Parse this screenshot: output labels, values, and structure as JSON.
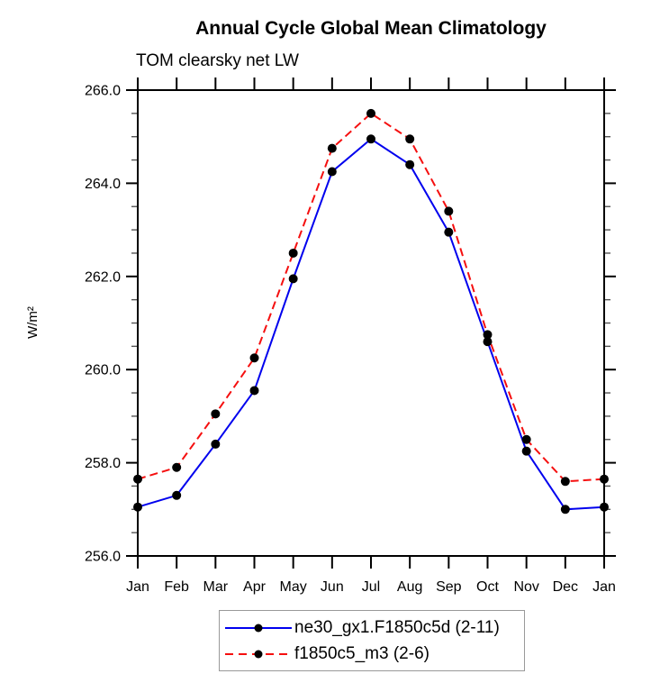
{
  "chart_data": {
    "type": "line",
    "title": "Annual Cycle Global Mean Climatology",
    "subtitle": "TOM clearsky net LW",
    "xlabel": "",
    "ylabel": "W/m²",
    "x_categories": [
      "Jan",
      "Feb",
      "Mar",
      "Apr",
      "May",
      "Jun",
      "Jul",
      "Aug",
      "Sep",
      "Oct",
      "Nov",
      "Dec",
      "Jan"
    ],
    "ylim": [
      256.0,
      266.0
    ],
    "y_major_ticks": [
      256.0,
      258.0,
      260.0,
      262.0,
      264.0,
      266.0
    ],
    "y_minor_step": 0.5,
    "y_tick_decimals": 1,
    "grid": false,
    "legend_position": "bottom-center",
    "marker": "filled-circle",
    "marker_color": "#000000",
    "series": [
      {
        "name": "ne30_gx1.F1850c5d (2-11)",
        "color": "#0000ee",
        "style": "solid",
        "values": [
          257.05,
          257.3,
          258.4,
          259.55,
          261.95,
          264.25,
          264.95,
          264.4,
          262.95,
          260.6,
          258.25,
          257.0,
          257.05
        ]
      },
      {
        "name": "f1850c5_m3 (2-6)",
        "color": "#f50f0f",
        "style": "dashed",
        "values": [
          257.65,
          257.9,
          259.05,
          260.25,
          262.5,
          264.75,
          265.5,
          264.95,
          263.4,
          260.75,
          258.5,
          257.6,
          257.65
        ]
      }
    ]
  }
}
